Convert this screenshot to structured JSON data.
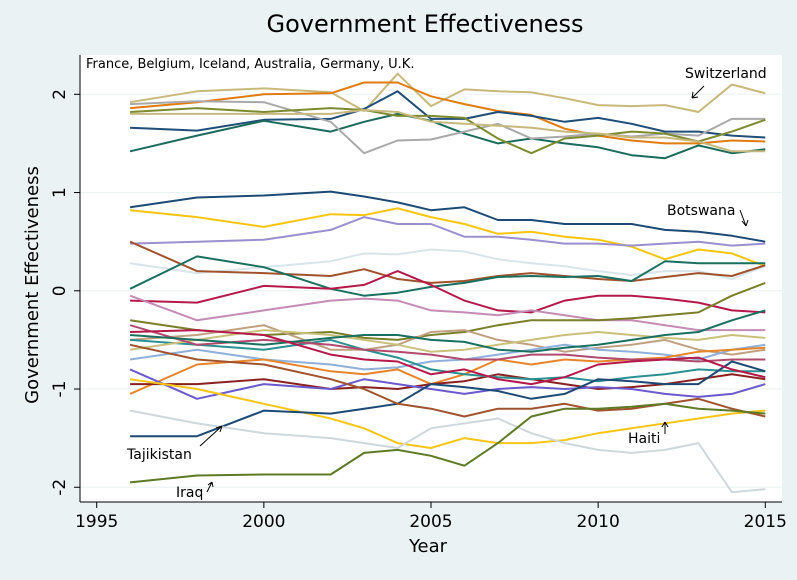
{
  "chart_data": {
    "type": "line",
    "title": "Government Effectiveness",
    "xlabel": "Year",
    "ylabel": "Government Effectiveness",
    "xlim": [
      1994.5,
      2015.5
    ],
    "ylim": [
      -2.15,
      2.4
    ],
    "xticks": [
      1995,
      2000,
      2005,
      2010,
      2015
    ],
    "yticks": [
      -2,
      -1,
      0,
      1,
      2
    ],
    "grid": "horizontal",
    "years": [
      1996,
      1998,
      2000,
      2002,
      2003,
      2004,
      2005,
      2006,
      2007,
      2008,
      2009,
      2010,
      2011,
      2012,
      2013,
      2014,
      2015
    ],
    "annotations": [
      {
        "id": "top-countries",
        "text": "France, Belgium, Iceland, Australia, Germany, U.K."
      },
      {
        "id": "switzerland",
        "text": "Switzerland"
      },
      {
        "id": "botswana",
        "text": "Botswana"
      },
      {
        "id": "tajikistan",
        "text": "Tajikistan"
      },
      {
        "id": "haiti",
        "text": "Haiti"
      },
      {
        "id": "iraq",
        "text": "Iraq"
      }
    ],
    "series": [
      {
        "color": "#c8b87a",
        "values": [
          1.92,
          2.03,
          2.06,
          2.02,
          1.83,
          2.21,
          1.88,
          2.05,
          2.03,
          2.02,
          1.96,
          1.89,
          1.88,
          1.89,
          1.82,
          2.1,
          2.01
        ]
      },
      {
        "color": "#e07b10",
        "values": [
          1.86,
          1.92,
          2.0,
          2.01,
          2.12,
          2.12,
          1.98,
          1.9,
          1.83,
          1.79,
          1.65,
          1.58,
          1.53,
          1.5,
          1.5,
          1.53,
          1.52
        ]
      },
      {
        "color": "#1f4e79",
        "values": [
          1.66,
          1.63,
          1.74,
          1.75,
          1.85,
          2.03,
          1.75,
          1.75,
          1.82,
          1.78,
          1.72,
          1.76,
          1.7,
          1.62,
          1.62,
          1.58,
          1.56
        ]
      },
      {
        "color": "#1a6b5c",
        "values": [
          1.42,
          1.58,
          1.73,
          1.62,
          1.72,
          1.8,
          1.73,
          1.6,
          1.5,
          1.55,
          1.5,
          1.46,
          1.38,
          1.35,
          1.48,
          1.4,
          1.44
        ]
      },
      {
        "color": "#a9a9a9",
        "values": [
          1.9,
          1.93,
          1.92,
          1.72,
          1.4,
          1.53,
          1.54,
          1.62,
          1.7,
          1.55,
          1.57,
          1.6,
          1.57,
          1.6,
          1.58,
          1.75,
          1.75
        ]
      },
      {
        "color": "#7d8a2e",
        "values": [
          1.82,
          1.86,
          1.82,
          1.86,
          1.84,
          1.78,
          1.78,
          1.76,
          1.55,
          1.4,
          1.55,
          1.58,
          1.62,
          1.6,
          1.52,
          1.62,
          1.74
        ]
      },
      {
        "color": "#c7b97d",
        "values": [
          1.8,
          1.8,
          1.8,
          1.8,
          1.84,
          1.82,
          1.72,
          1.7,
          1.68,
          1.66,
          1.62,
          1.6,
          1.56,
          1.56,
          1.52,
          1.42,
          1.42
        ]
      },
      {
        "color": "#1c4a75",
        "values": [
          0.85,
          0.95,
          0.97,
          1.01,
          0.96,
          0.9,
          0.82,
          0.85,
          0.72,
          0.72,
          0.68,
          0.68,
          0.68,
          0.62,
          0.6,
          0.56,
          0.5
        ]
      },
      {
        "color": "#f7c510",
        "values": [
          0.82,
          0.75,
          0.65,
          0.78,
          0.77,
          0.84,
          0.75,
          0.68,
          0.58,
          0.6,
          0.55,
          0.52,
          0.45,
          0.32,
          0.42,
          0.38,
          0.25
        ]
      },
      {
        "color": "#9a8fcf",
        "values": [
          0.48,
          0.5,
          0.52,
          0.62,
          0.75,
          0.68,
          0.68,
          0.55,
          0.55,
          0.52,
          0.48,
          0.48,
          0.46,
          0.48,
          0.5,
          0.46,
          0.48
        ]
      },
      {
        "color": "#d8e6ea",
        "values": [
          0.28,
          0.18,
          0.24,
          0.3,
          0.38,
          0.37,
          0.42,
          0.4,
          0.32,
          0.28,
          0.25,
          0.2,
          0.16,
          0.2,
          0.2,
          0.12,
          0.25
        ]
      },
      {
        "color": "#a0522d",
        "values": [
          0.5,
          0.2,
          0.18,
          0.15,
          0.22,
          0.12,
          0.08,
          0.1,
          0.15,
          0.18,
          0.15,
          0.12,
          0.1,
          0.14,
          0.18,
          0.15,
          0.26
        ]
      },
      {
        "color": "#1a7060",
        "values": [
          0.02,
          0.35,
          0.24,
          0.02,
          -0.05,
          -0.02,
          0.04,
          0.08,
          0.14,
          0.15,
          0.14,
          0.15,
          0.1,
          0.3,
          0.28,
          0.28,
          0.28
        ]
      },
      {
        "color": "#b5194a",
        "values": [
          -0.1,
          -0.12,
          0.05,
          0.02,
          0.06,
          0.2,
          0.06,
          -0.1,
          -0.2,
          -0.22,
          -0.1,
          -0.05,
          -0.05,
          -0.08,
          -0.12,
          -0.2,
          -0.22
        ]
      },
      {
        "color": "#c48bb5",
        "values": [
          -0.05,
          -0.3,
          -0.2,
          -0.1,
          -0.08,
          -0.1,
          -0.2,
          -0.22,
          -0.25,
          -0.2,
          -0.25,
          -0.3,
          -0.3,
          -0.35,
          -0.4,
          -0.4,
          -0.4
        ]
      },
      {
        "color": "#7a7f2a",
        "values": [
          -0.3,
          -0.4,
          -0.45,
          -0.42,
          -0.48,
          -0.5,
          -0.45,
          -0.42,
          -0.35,
          -0.3,
          -0.3,
          -0.3,
          -0.28,
          -0.25,
          -0.22,
          -0.05,
          0.08
        ]
      },
      {
        "color": "#c0a080",
        "values": [
          -0.5,
          -0.45,
          -0.35,
          -0.6,
          -0.6,
          -0.55,
          -0.42,
          -0.4,
          -0.5,
          -0.55,
          -0.62,
          -0.58,
          -0.55,
          -0.5,
          -0.6,
          -0.65,
          -0.6
        ]
      },
      {
        "color": "#8fb0d8",
        "values": [
          -0.7,
          -0.6,
          -0.7,
          -0.75,
          -0.8,
          -0.78,
          -0.72,
          -0.7,
          -0.65,
          -0.6,
          -0.55,
          -0.6,
          -0.62,
          -0.65,
          -0.7,
          -0.6,
          -0.55
        ]
      },
      {
        "color": "#e8842a",
        "values": [
          -1.05,
          -0.75,
          -0.7,
          -0.82,
          -0.85,
          -0.8,
          -0.95,
          -0.85,
          -0.7,
          -0.75,
          -0.7,
          -0.72,
          -0.7,
          -0.68,
          -0.62,
          -0.6,
          -0.58
        ]
      },
      {
        "color": "#8b2020",
        "values": [
          -0.95,
          -0.95,
          -0.9,
          -1.0,
          -0.98,
          -1.0,
          -0.95,
          -0.92,
          -0.85,
          -0.9,
          -0.95,
          -1.0,
          -0.98,
          -0.95,
          -0.9,
          -0.85,
          -0.9
        ]
      },
      {
        "color": "#2a9090",
        "values": [
          -0.5,
          -0.55,
          -0.6,
          -0.5,
          -0.6,
          -0.68,
          -0.8,
          -0.85,
          -0.88,
          -0.9,
          -0.88,
          -0.92,
          -0.88,
          -0.85,
          -0.8,
          -0.82,
          -0.82
        ]
      },
      {
        "color": "#c9c07c",
        "values": [
          -0.6,
          -0.5,
          -0.4,
          -0.45,
          -0.5,
          -0.55,
          -0.62,
          -0.6,
          -0.55,
          -0.5,
          -0.45,
          -0.42,
          -0.45,
          -0.48,
          -0.5,
          -0.45,
          -0.48
        ]
      },
      {
        "color": "#6a5acd",
        "values": [
          -0.8,
          -1.1,
          -0.95,
          -1.0,
          -0.9,
          -0.95,
          -1.0,
          -1.05,
          -1.0,
          -0.98,
          -1.0,
          -0.98,
          -1.0,
          -1.05,
          -1.08,
          -1.05,
          -0.95
        ]
      },
      {
        "color": "#b04a6e",
        "values": [
          -0.35,
          -0.55,
          -0.5,
          -0.55,
          -0.6,
          -0.62,
          -0.65,
          -0.7,
          -0.7,
          -0.65,
          -0.65,
          -0.68,
          -0.7,
          -0.7,
          -0.72,
          -0.7,
          -0.7
        ]
      },
      {
        "color": "#f5c518",
        "values": [
          -0.9,
          -1.0,
          -1.15,
          -1.3,
          -1.4,
          -1.55,
          -1.6,
          -1.5,
          -1.55,
          -1.55,
          -1.52,
          -1.45,
          -1.4,
          -1.35,
          -1.3,
          -1.25,
          -1.22
        ]
      },
      {
        "color": "#1c4a75",
        "values": [
          -1.48,
          -1.48,
          -1.22,
          -1.25,
          -1.2,
          -1.15,
          -0.95,
          -0.98,
          -1.02,
          -1.1,
          -1.05,
          -0.9,
          -0.92,
          -0.95,
          -0.95,
          -0.72,
          -0.82
        ]
      },
      {
        "color": "#a0522d",
        "values": [
          -0.55,
          -0.7,
          -0.75,
          -0.9,
          -1.0,
          -1.15,
          -1.2,
          -1.28,
          -1.2,
          -1.2,
          -1.15,
          -1.22,
          -1.2,
          -1.15,
          -1.1,
          -1.2,
          -1.28
        ]
      },
      {
        "color": "#cfd8dc",
        "values": [
          -1.22,
          -1.35,
          -1.45,
          -1.5,
          -1.55,
          -1.6,
          -1.4,
          -1.35,
          -1.3,
          -1.45,
          -1.55,
          -1.62,
          -1.65,
          -1.62,
          -1.55,
          -2.05,
          -2.02
        ]
      },
      {
        "color": "#5e7a26",
        "values": [
          -1.95,
          -1.88,
          -1.87,
          -1.87,
          -1.65,
          -1.62,
          -1.68,
          -1.78,
          -1.55,
          -1.28,
          -1.2,
          -1.2,
          -1.18,
          -1.15,
          -1.2,
          -1.22,
          -1.25
        ]
      },
      {
        "color": "#1a7060",
        "values": [
          -0.45,
          -0.5,
          -0.55,
          -0.48,
          -0.45,
          -0.45,
          -0.5,
          -0.52,
          -0.6,
          -0.62,
          -0.58,
          -0.55,
          -0.5,
          -0.45,
          -0.42,
          -0.3,
          -0.2
        ]
      },
      {
        "color": "#b5194a",
        "values": [
          -0.42,
          -0.4,
          -0.45,
          -0.65,
          -0.7,
          -0.72,
          -0.85,
          -0.8,
          -0.9,
          -0.95,
          -0.88,
          -0.75,
          -0.72,
          -0.7,
          -0.68,
          -0.8,
          -0.88
        ]
      }
    ]
  }
}
